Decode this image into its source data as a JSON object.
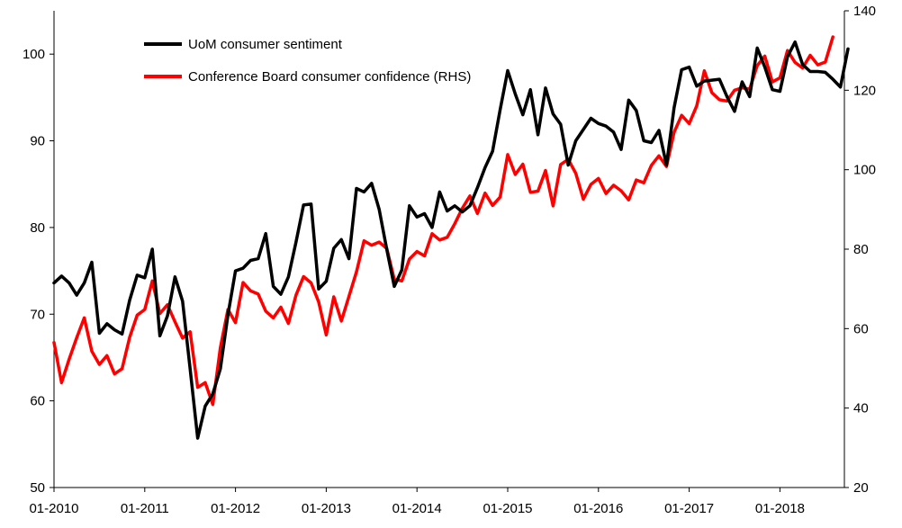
{
  "chart_data": {
    "type": "line",
    "title": "",
    "xlabel": "",
    "ylabel": "",
    "y2label": "",
    "x_tick_labels": [
      "01-2010",
      "01-2011",
      "01-2012",
      "01-2013",
      "01-2014",
      "01-2015",
      "01-2016",
      "01-2017",
      "01-2018"
    ],
    "x_range": [
      "01-2010",
      "08-2018"
    ],
    "ylim": [
      50,
      105
    ],
    "y_ticks": [
      50,
      60,
      70,
      80,
      90,
      100
    ],
    "y2lim": [
      20,
      140
    ],
    "y2_ticks": [
      20,
      40,
      60,
      80,
      100,
      120,
      140
    ],
    "grid": false,
    "legend_position": "top-left",
    "series": [
      {
        "name": "UoM consumer sentiment",
        "axis": "left",
        "color": "#000000",
        "values": [
          73.6,
          74.4,
          73.6,
          72.2,
          73.6,
          76.0,
          67.8,
          68.9,
          68.2,
          67.7,
          71.6,
          74.5,
          74.2,
          77.5,
          67.5,
          69.8,
          74.3,
          71.5,
          63.7,
          55.7,
          59.4,
          60.8,
          63.7,
          69.9,
          75.0,
          75.3,
          76.2,
          76.4,
          79.3,
          73.2,
          72.3,
          74.3,
          78.3,
          82.6,
          82.7,
          72.9,
          73.8,
          77.6,
          78.6,
          76.4,
          84.5,
          84.1,
          85.1,
          82.1,
          77.5,
          73.2,
          75.1,
          82.5,
          81.2,
          81.6,
          80.0,
          84.1,
          81.9,
          82.5,
          81.8,
          82.5,
          84.6,
          86.9,
          88.8,
          93.6,
          98.1,
          95.4,
          93.0,
          95.9,
          90.7,
          96.1,
          93.1,
          91.9,
          87.2,
          90.0,
          91.3,
          92.6,
          92.0,
          91.7,
          91.0,
          89.0,
          94.7,
          93.5,
          90.0,
          89.8,
          91.2,
          87.2,
          93.8,
          98.2,
          98.5,
          96.3,
          96.9,
          97.0,
          97.1,
          95.1,
          93.4,
          96.8,
          95.1,
          100.7,
          98.5,
          95.9,
          95.7,
          99.7,
          101.4,
          98.8,
          98.0,
          98.0,
          97.9,
          97.1,
          96.2,
          100.6
        ]
      },
      {
        "name": "Conference Board consumer confidence (RHS)",
        "axis": "right",
        "color": "#ff0000",
        "values": [
          56.5,
          46.4,
          52.3,
          57.7,
          62.7,
          54.3,
          51.0,
          53.2,
          48.6,
          49.9,
          57.8,
          63.4,
          64.8,
          72.0,
          63.8,
          66.0,
          61.7,
          57.6,
          59.2,
          45.2,
          46.4,
          40.9,
          55.2,
          64.8,
          61.5,
          71.6,
          69.5,
          68.7,
          64.4,
          62.7,
          65.4,
          61.3,
          68.4,
          73.1,
          71.5,
          66.7,
          58.4,
          68.0,
          61.9,
          68.1,
          74.3,
          82.1,
          81.0,
          81.8,
          80.2,
          72.4,
          72.0,
          77.5,
          79.4,
          78.3,
          83.9,
          82.3,
          83.0,
          86.4,
          90.3,
          93.4,
          89.0,
          94.1,
          91.0,
          93.1,
          103.8,
          98.8,
          101.4,
          94.3,
          94.6,
          99.8,
          90.9,
          101.3,
          102.6,
          99.1,
          92.6,
          96.3,
          97.8,
          94.0,
          96.1,
          94.7,
          92.4,
          97.4,
          96.7,
          101.1,
          103.5,
          100.8,
          109.4,
          113.7,
          111.6,
          116.1,
          124.9,
          119.4,
          117.6,
          117.3,
          120.0,
          120.6,
          120.3,
          126.2,
          128.6,
          122.1,
          123.1,
          130.0,
          127.0,
          125.6,
          128.8,
          126.4,
          127.1,
          133.4
        ]
      }
    ]
  }
}
